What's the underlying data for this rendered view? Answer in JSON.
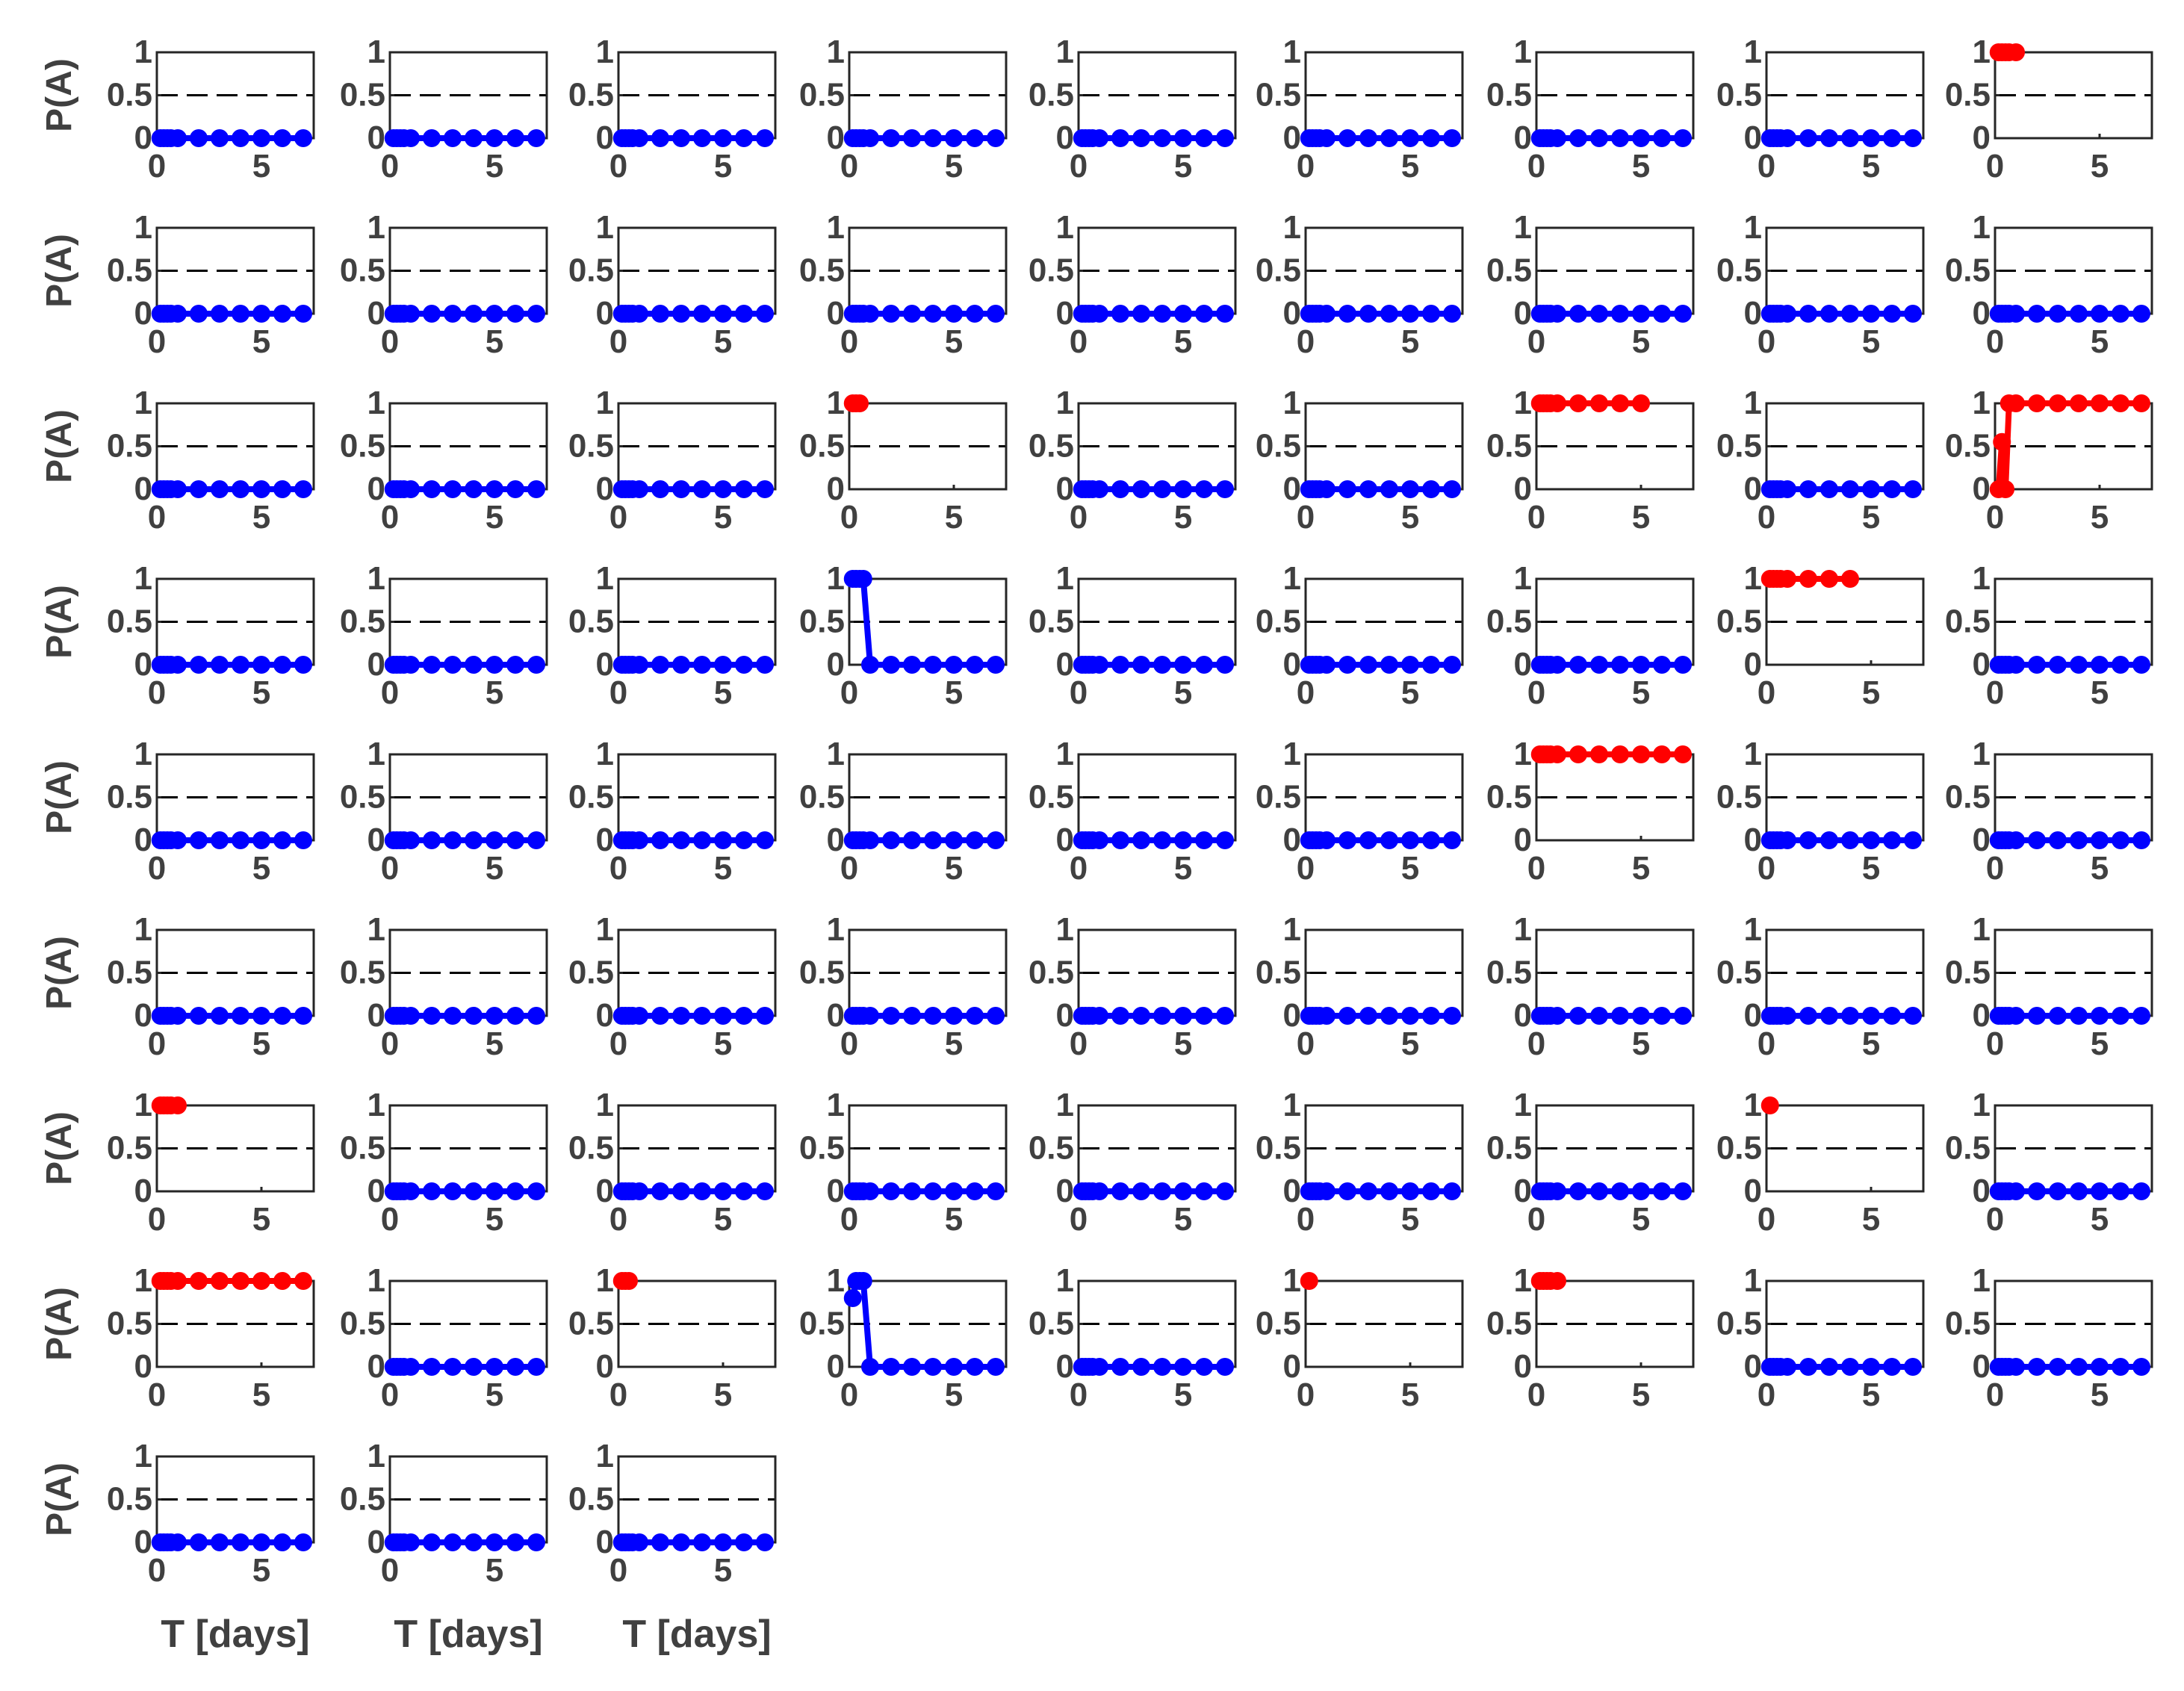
{
  "figure": {
    "rows": 9,
    "cols": 9,
    "panel_count": 75,
    "ylabel": "P(A)",
    "xlabel": "T [days]",
    "xlabel_panels": [
      72,
      73,
      74
    ],
    "ylabel_column": 0,
    "colors": {
      "safe": "#0000ff",
      "alert": "#ff0000",
      "axis": "#262626",
      "tick_text": "#404040",
      "threshold_line": "#000000"
    }
  },
  "chart_data": {
    "type": "scatter",
    "description_of_axes": {
      "xlim": [
        0,
        7.5
      ],
      "ylim": [
        0,
        1
      ],
      "xticks": [
        "0",
        "5"
      ],
      "yticks": [
        "0",
        "0.5",
        "1"
      ],
      "threshold": 0.5,
      "grid": false
    },
    "x": [
      0.17,
      0.33,
      0.5,
      0.67,
      1.0,
      2.0,
      3.0,
      4.0,
      5.0,
      6.0,
      7.0
    ],
    "default_panel": {
      "color": "blue",
      "values": [
        0,
        0,
        0,
        0,
        0,
        0,
        0,
        0,
        0,
        0,
        0
      ]
    },
    "special_panels": [
      {
        "index": 8,
        "color": "red",
        "x": [
          0.17,
          0.33,
          0.5,
          0.67,
          1.0
        ],
        "values": [
          1,
          1,
          1,
          1,
          1
        ]
      },
      {
        "index": 21,
        "color": "red",
        "x": [
          0.17,
          0.33,
          0.5
        ],
        "values": [
          1,
          1,
          1
        ]
      },
      {
        "index": 24,
        "color": "red",
        "x": [
          0.17,
          0.33,
          0.5,
          0.67,
          1.0,
          2.0,
          3.0,
          4.0,
          5.0
        ],
        "values": [
          1,
          1,
          1,
          1,
          1,
          1,
          1,
          1,
          1
        ]
      },
      {
        "index": 26,
        "color": "red",
        "x": [
          0.17,
          0.33,
          0.5,
          0.67,
          1.0,
          2.0,
          3.0,
          4.0,
          5.0,
          6.0,
          7.0
        ],
        "values": [
          0,
          0.55,
          0,
          1,
          1,
          1,
          1,
          1,
          1,
          1,
          1
        ]
      },
      {
        "index": 30,
        "color": "blue",
        "x": [
          0.17,
          0.33,
          0.5,
          0.67,
          1.0,
          2.0,
          3.0,
          4.0,
          5.0,
          6.0,
          7.0
        ],
        "values": [
          1,
          1,
          1,
          1,
          0,
          0,
          0,
          0,
          0,
          0,
          0
        ]
      },
      {
        "index": 34,
        "color": "red",
        "x": [
          0.17,
          0.33,
          0.5,
          0.67,
          1.0,
          2.0,
          3.0,
          4.0
        ],
        "values": [
          1,
          1,
          1,
          1,
          1,
          1,
          1,
          1
        ]
      },
      {
        "index": 42,
        "color": "red",
        "x": [
          0.17,
          0.33,
          0.5,
          0.67,
          1.0,
          2.0,
          3.0,
          4.0,
          5.0,
          6.0,
          7.0
        ],
        "values": [
          1,
          1,
          1,
          1,
          1,
          1,
          1,
          1,
          1,
          1,
          1
        ]
      },
      {
        "index": 54,
        "color": "red",
        "x": [
          0.17,
          0.33,
          0.5,
          0.67,
          1.0
        ],
        "values": [
          1,
          1,
          1,
          1,
          1
        ]
      },
      {
        "index": 61,
        "color": "red",
        "x": [
          0.17
        ],
        "values": [
          1
        ]
      },
      {
        "index": 63,
        "color": "red",
        "x": [
          0.17,
          0.33,
          0.5,
          0.67,
          1.0,
          2.0,
          3.0,
          4.0,
          5.0,
          6.0,
          7.0
        ],
        "values": [
          1,
          1,
          1,
          1,
          1,
          1,
          1,
          1,
          1,
          1,
          1
        ]
      },
      {
        "index": 65,
        "color": "red",
        "x": [
          0.17,
          0.33,
          0.5
        ],
        "values": [
          1,
          1,
          1
        ]
      },
      {
        "index": 66,
        "color": "blue",
        "x": [
          0.17,
          0.33,
          0.5,
          0.67,
          1.0,
          2.0,
          3.0,
          4.0,
          5.0,
          6.0,
          7.0
        ],
        "values": [
          0.8,
          1,
          1,
          1,
          0,
          0,
          0,
          0,
          0,
          0,
          0
        ]
      },
      {
        "index": 68,
        "color": "red",
        "x": [
          0.17
        ],
        "values": [
          1
        ]
      },
      {
        "index": 69,
        "color": "red",
        "x": [
          0.17,
          0.33,
          0.5,
          0.67,
          1.0
        ],
        "values": [
          1,
          1,
          1,
          1,
          1
        ]
      }
    ]
  }
}
